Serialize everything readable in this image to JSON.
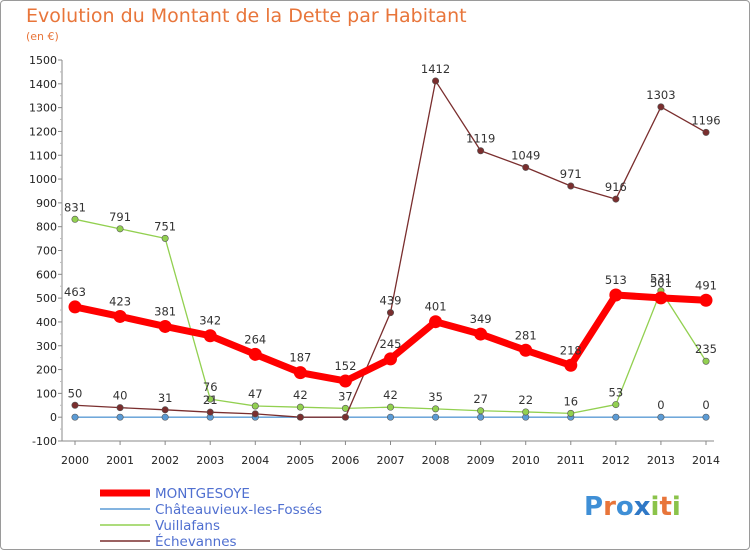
{
  "header": {
    "title": "Evolution du Montant de la Dette par Habitant",
    "subtitle": "(en €)"
  },
  "brand": {
    "letters": [
      "P",
      "r",
      "o",
      "x",
      "i",
      "t",
      "i"
    ],
    "colors": [
      "#3f8fd6",
      "#e8753a",
      "#3f8fd6",
      "#2f78c6",
      "#8bc34a",
      "#e8753a",
      "#8bc34a"
    ]
  },
  "chart_data": {
    "type": "line",
    "title": "Evolution du Montant de la Dette par Habitant",
    "subtitle": "(en €)",
    "x": [
      "2000",
      "2001",
      "2002",
      "2003",
      "2004",
      "2005",
      "2006",
      "2007",
      "2008",
      "2009",
      "2010",
      "2011",
      "2012",
      "2013",
      "2014"
    ],
    "ylim": [
      -100,
      1500
    ],
    "yticks": [
      -100,
      0,
      100,
      200,
      300,
      400,
      500,
      600,
      700,
      800,
      900,
      1000,
      1100,
      1200,
      1300,
      1400,
      1500
    ],
    "grid": false,
    "legend_position": "bottom-left",
    "series": [
      {
        "name": "Châteauvieux-les-Fossés",
        "color": "#5b9bd5",
        "values": [
          0,
          0,
          0,
          0,
          0,
          0,
          0,
          0,
          0,
          0,
          0,
          0,
          0,
          0,
          0
        ],
        "labels": [
          "",
          "",
          "",
          "",
          "",
          "",
          "",
          "",
          "",
          "",
          "",
          "",
          "",
          "0",
          "0"
        ]
      },
      {
        "name": "Vuillafans",
        "color": "#92d050",
        "values": [
          831,
          791,
          751,
          76,
          47,
          42,
          37,
          42,
          35,
          27,
          22,
          16,
          53,
          531,
          235
        ],
        "labels": [
          "831",
          "791",
          "751",
          "76",
          "47",
          "42",
          "37",
          "42",
          "35",
          "27",
          "22",
          "16",
          "53",
          "531",
          "235"
        ]
      },
      {
        "name": "Échevannes",
        "color": "#7a2e2e",
        "values": [
          50,
          40,
          31,
          21,
          14,
          0,
          0,
          439,
          1412,
          1119,
          1049,
          971,
          916,
          1303,
          1196
        ],
        "labels": [
          "50",
          "40",
          "31",
          "21",
          "",
          "",
          "",
          "439",
          "1412",
          "1119",
          "1049",
          "971",
          "916",
          "1303",
          "1196"
        ]
      },
      {
        "name": "MONTGESOYE",
        "color": "#ff0000",
        "values": [
          463,
          423,
          381,
          342,
          264,
          187,
          152,
          245,
          401,
          349,
          281,
          218,
          513,
          501,
          491
        ],
        "labels": [
          "463",
          "423",
          "381",
          "342",
          "264",
          "187",
          "152",
          "245",
          "401",
          "349",
          "281",
          "218",
          "513",
          "501",
          "491"
        ]
      }
    ],
    "legend": [
      "MONTGESOYE",
      "Châteauvieux-les-Fossés",
      "Vuillafans",
      "Échevannes"
    ]
  }
}
